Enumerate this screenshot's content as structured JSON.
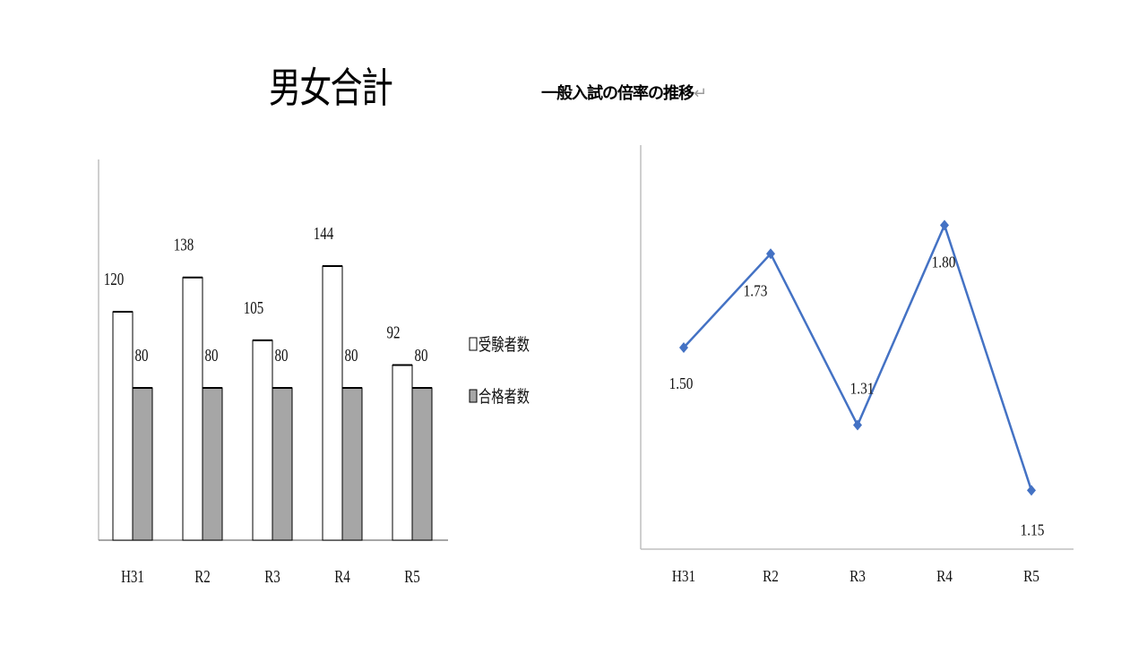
{
  "header": {
    "main_title": "男女合計",
    "sub_title": "一般入試の倍率の推移",
    "return_mark": "↵"
  },
  "chart_data": [
    {
      "type": "bar",
      "categories": [
        "H31",
        "R2",
        "R3",
        "R4",
        "R5"
      ],
      "series": [
        {
          "name": "受験者数",
          "values": [
            120,
            138,
            105,
            144,
            92
          ],
          "color": "#ffffff",
          "stroke": "#000000"
        },
        {
          "name": "合格者数",
          "values": [
            80,
            80,
            80,
            80,
            80
          ],
          "color": "#a6a6a6",
          "stroke": "#000000"
        }
      ],
      "ylim": [
        0,
        200
      ],
      "legend": "right",
      "grid": false
    },
    {
      "type": "line",
      "categories": [
        "H31",
        "R2",
        "R3",
        "R4",
        "R5"
      ],
      "series": [
        {
          "values": [
            1.5,
            1.73,
            1.31,
            1.8,
            1.15
          ],
          "labels": [
            "1.50",
            "1.73",
            "1.31",
            "1.80",
            "1.15"
          ],
          "color": "#4472c4"
        }
      ],
      "ylim": [
        1.0,
        2.0
      ],
      "grid": false
    }
  ]
}
